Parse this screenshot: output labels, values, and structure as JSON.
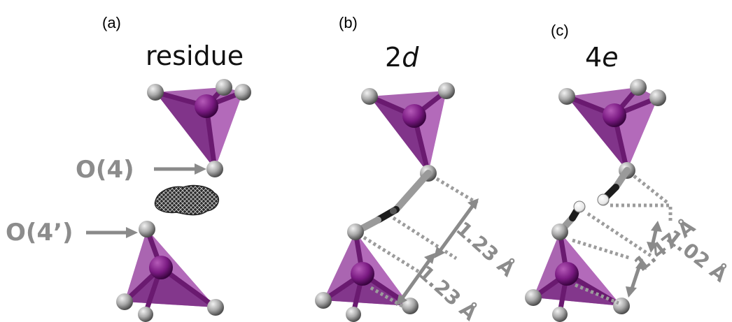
{
  "panels": [
    {
      "letter": "(a)",
      "title": "residue",
      "title_italic": ""
    },
    {
      "letter": "(b)",
      "title": "2",
      "title_italic": "d"
    },
    {
      "letter": "(c)",
      "title": "4",
      "title_italic": "e"
    }
  ],
  "labels": {
    "o4": "O(4)",
    "o4prime": "O(4’)"
  },
  "distances": {
    "b_upper": "1.23 Å",
    "b_lower": "1.23 Å",
    "c_upper": "1.02 Å",
    "c_lower": "1.47 Å"
  },
  "colors": {
    "tetrahedron": "#a55cad",
    "phosphorus": "#7a1a82",
    "oxygen": "#9e9e9e",
    "hydrogen": "#ffffff",
    "label_gray": "#8c8c8c"
  }
}
